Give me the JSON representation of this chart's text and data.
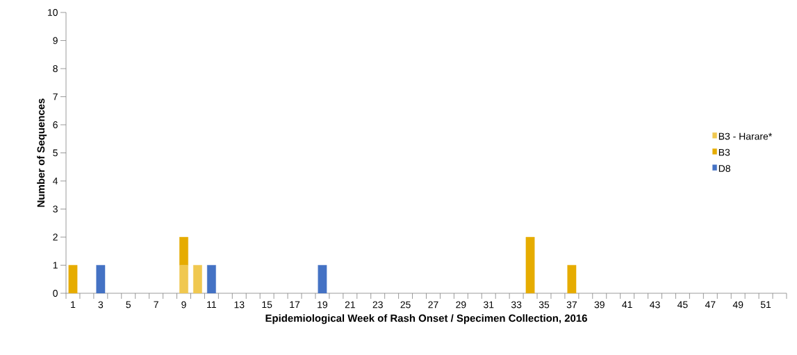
{
  "chart_data": {
    "type": "bar",
    "stacked": true,
    "xlabel": "Epidemiological Week of Rash Onset / Specimen Collection, 2016",
    "ylabel": "Number of Sequences",
    "categories": [
      "1",
      null,
      "3",
      null,
      "5",
      null,
      "7",
      null,
      "9",
      null,
      "11",
      null,
      "13",
      null,
      "15",
      null,
      "17",
      null,
      "19",
      null,
      "21",
      null,
      "23",
      null,
      "25",
      null,
      "27",
      null,
      "29",
      null,
      "31",
      null,
      "33",
      null,
      "35",
      null,
      "37",
      null,
      "39",
      null,
      "41",
      null,
      "43",
      null,
      "45",
      null,
      "47",
      null,
      "49",
      null,
      "51",
      null
    ],
    "series": [
      {
        "name": "B3 - Harare*",
        "color": "#f0c850",
        "values": [
          0,
          0,
          0,
          0,
          0,
          0,
          0,
          0,
          1,
          1,
          0,
          0,
          0,
          0,
          0,
          0,
          0,
          0,
          0,
          0,
          0,
          0,
          0,
          0,
          0,
          0,
          0,
          0,
          0,
          0,
          0,
          0,
          0,
          0,
          0,
          0,
          0,
          0,
          0,
          0,
          0,
          0,
          0,
          0,
          0,
          0,
          0,
          0,
          0,
          0,
          0,
          0
        ]
      },
      {
        "name": "B3",
        "color": "#e6ac00",
        "values": [
          1,
          0,
          0,
          0,
          0,
          0,
          0,
          0,
          1,
          0,
          0,
          0,
          0,
          0,
          0,
          0,
          0,
          0,
          0,
          0,
          0,
          0,
          0,
          0,
          0,
          0,
          0,
          0,
          0,
          0,
          0,
          0,
          0,
          2,
          0,
          0,
          1,
          0,
          0,
          0,
          0,
          0,
          0,
          0,
          0,
          0,
          0,
          0,
          0,
          0,
          0,
          0
        ]
      },
      {
        "name": "D8",
        "color": "#4472c4",
        "values": [
          0,
          0,
          1,
          0,
          0,
          0,
          0,
          0,
          0,
          0,
          1,
          0,
          0,
          0,
          0,
          0,
          0,
          0,
          1,
          0,
          0,
          0,
          0,
          0,
          0,
          0,
          0,
          0,
          0,
          0,
          0,
          0,
          0,
          0,
          0,
          0,
          0,
          0,
          0,
          0,
          0,
          0,
          0,
          0,
          0,
          0,
          0,
          0,
          0,
          0,
          0,
          0
        ]
      }
    ],
    "ylim": [
      0,
      10
    ],
    "yticks": [
      0,
      1,
      2,
      3,
      4,
      5,
      6,
      7,
      8,
      9,
      10
    ],
    "grid": false,
    "legend": "right"
  }
}
